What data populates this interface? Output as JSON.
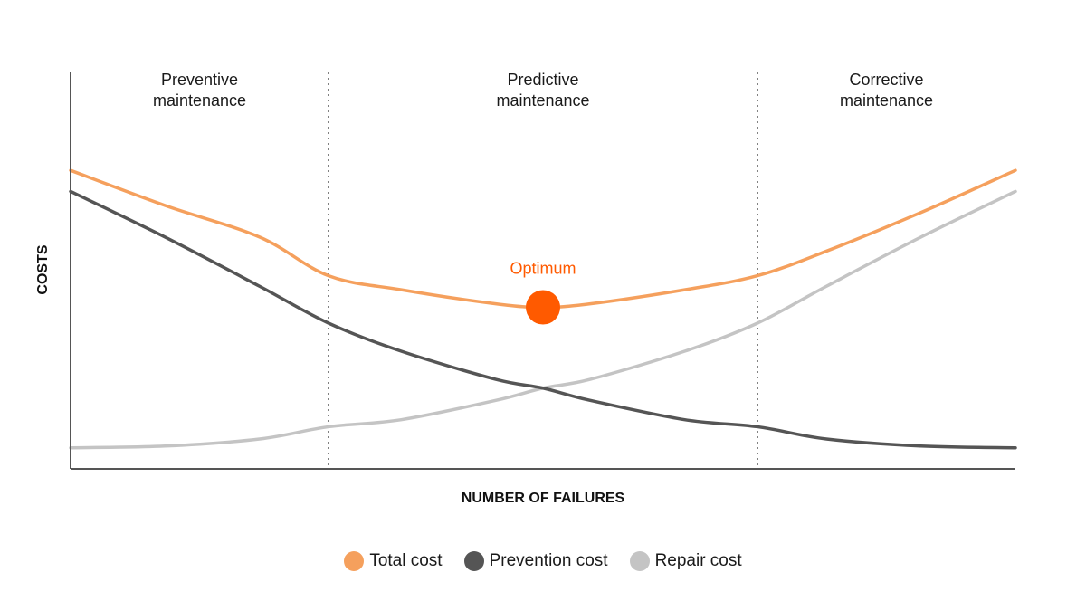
{
  "chart_data": {
    "type": "line",
    "title": "",
    "xlabel": "NUMBER OF FAILURES",
    "ylabel": "COSTS",
    "x_ticks": false,
    "y_ticks": false,
    "xlim": [
      0,
      100
    ],
    "ylim": [
      0,
      100
    ],
    "grid": false,
    "legend_position": "bottom-center",
    "regions": [
      {
        "label": [
          "Preventive",
          "maintenance"
        ],
        "x_start": 0,
        "x_end": 27.3
      },
      {
        "label": [
          "Predictive",
          "maintenance"
        ],
        "x_start": 27.3,
        "x_end": 72.7
      },
      {
        "label": [
          "Corrective",
          "maintenance"
        ],
        "x_start": 72.7,
        "x_end": 100
      }
    ],
    "boundaries": [
      27.3,
      72.7
    ],
    "series": [
      {
        "name": "Total cost",
        "color": "#f5a05d",
        "x": [
          0,
          10,
          20,
          27.3,
          35,
          45,
          50,
          55,
          65,
          72.7,
          80,
          90,
          100
        ],
        "y": [
          85,
          75,
          66,
          55,
          51,
          47,
          46,
          47,
          51,
          55,
          62,
          73,
          85
        ]
      },
      {
        "name": "Prevention cost",
        "color": "#555555",
        "x": [
          0,
          10,
          20,
          27.3,
          35,
          45,
          50,
          55,
          65,
          72.7,
          80,
          90,
          100
        ],
        "y": [
          79,
          66,
          52,
          41.5,
          33.5,
          25.5,
          23,
          19.5,
          14,
          12,
          8.5,
          6.5,
          6
        ]
      },
      {
        "name": "Repair cost",
        "color": "#c4c4c4",
        "x": [
          0,
          10,
          20,
          27.3,
          35,
          45,
          50,
          55,
          65,
          72.7,
          80,
          90,
          100
        ],
        "y": [
          6,
          6.5,
          8.5,
          12,
          14,
          19.5,
          23,
          25.5,
          33.5,
          41.5,
          52,
          66,
          79
        ]
      }
    ],
    "annotations": [
      {
        "text": "Optimum",
        "x": 50,
        "y": 46,
        "color": "#ff5a00"
      }
    ]
  },
  "legend": {
    "items": [
      {
        "label": "Total cost",
        "color": "#f5a05d"
      },
      {
        "label": "Prevention cost",
        "color": "#555555"
      },
      {
        "label": "Repair cost",
        "color": "#c4c4c4"
      }
    ]
  }
}
